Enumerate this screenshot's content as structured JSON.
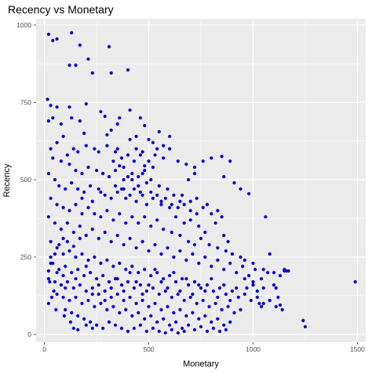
{
  "chart_data": {
    "type": "scatter",
    "title": "Recency vs Monetary",
    "xlabel": "Monetary",
    "ylabel": "Recency",
    "xlim": [
      -40,
      1540
    ],
    "ylim": [
      -25,
      1020
    ],
    "x_ticks": [
      0,
      500,
      1000,
      1500
    ],
    "y_ticks": [
      0,
      250,
      500,
      750,
      1000
    ],
    "x_tick_labels": [
      "0",
      "500",
      "1000",
      "1500"
    ],
    "y_tick_labels": [
      "0",
      "250",
      "500",
      "750",
      "1000"
    ],
    "grid": true,
    "legend": "none",
    "colors": {
      "panel": "#ebebeb",
      "grid": "#ffffff",
      "point": "#0000cd",
      "text": "#000000",
      "tick_text": "#4d4d4d"
    },
    "points": [
      [
        20,
        970
      ],
      [
        40,
        950
      ],
      [
        60,
        955
      ],
      [
        130,
        975
      ],
      [
        170,
        935
      ],
      [
        210,
        890
      ],
      [
        310,
        930
      ],
      [
        400,
        855
      ],
      [
        120,
        870
      ],
      [
        230,
        845
      ],
      [
        150,
        870
      ],
      [
        320,
        845
      ],
      [
        15,
        760
      ],
      [
        30,
        740
      ],
      [
        60,
        735
      ],
      [
        120,
        735
      ],
      [
        200,
        745
      ],
      [
        20,
        690
      ],
      [
        40,
        700
      ],
      [
        80,
        680
      ],
      [
        130,
        700
      ],
      [
        170,
        690
      ],
      [
        190,
        650
      ],
      [
        270,
        720
      ],
      [
        290,
        705
      ],
      [
        360,
        700
      ],
      [
        410,
        725
      ],
      [
        460,
        700
      ],
      [
        350,
        680
      ],
      [
        320,
        660
      ],
      [
        300,
        645
      ],
      [
        480,
        675
      ],
      [
        550,
        655
      ],
      [
        600,
        640
      ],
      [
        520,
        620
      ],
      [
        440,
        640
      ],
      [
        410,
        630
      ],
      [
        30,
        600
      ],
      [
        60,
        620
      ],
      [
        90,
        640
      ],
      [
        110,
        580
      ],
      [
        140,
        600
      ],
      [
        160,
        590
      ],
      [
        200,
        610
      ],
      [
        240,
        600
      ],
      [
        260,
        590
      ],
      [
        300,
        610
      ],
      [
        340,
        590
      ],
      [
        370,
        570
      ],
      [
        400,
        580
      ],
      [
        440,
        600
      ],
      [
        470,
        590
      ],
      [
        500,
        560
      ],
      [
        530,
        580
      ],
      [
        570,
        570
      ],
      [
        600,
        600
      ],
      [
        640,
        560
      ],
      [
        680,
        550
      ],
      [
        720,
        540
      ],
      [
        760,
        560
      ],
      [
        800,
        570
      ],
      [
        850,
        575
      ],
      [
        890,
        560
      ],
      [
        860,
        510
      ],
      [
        910,
        490
      ],
      [
        940,
        470
      ],
      [
        980,
        455
      ],
      [
        720,
        520
      ],
      [
        690,
        500
      ],
      [
        40,
        570
      ],
      [
        80,
        560
      ],
      [
        120,
        550
      ],
      [
        150,
        530
      ],
      [
        180,
        520
      ],
      [
        210,
        540
      ],
      [
        250,
        530
      ],
      [
        280,
        520
      ],
      [
        310,
        510
      ],
      [
        340,
        530
      ],
      [
        380,
        540
      ],
      [
        420,
        520
      ],
      [
        450,
        510
      ],
      [
        480,
        530
      ],
      [
        510,
        500
      ],
      [
        550,
        480
      ],
      [
        590,
        470
      ],
      [
        620,
        450
      ],
      [
        650,
        430
      ],
      [
        660,
        450
      ],
      [
        700,
        430
      ],
      [
        730,
        440
      ],
      [
        760,
        410
      ],
      [
        780,
        420
      ],
      [
        800,
        390
      ],
      [
        830,
        400
      ],
      [
        850,
        380
      ],
      [
        20,
        520
      ],
      [
        50,
        500
      ],
      [
        70,
        480
      ],
      [
        100,
        470
      ],
      [
        130,
        490
      ],
      [
        160,
        470
      ],
      [
        190,
        460
      ],
      [
        220,
        480
      ],
      [
        260,
        470
      ],
      [
        290,
        450
      ],
      [
        320,
        440
      ],
      [
        350,
        460
      ],
      [
        380,
        470
      ],
      [
        410,
        450
      ],
      [
        440,
        430
      ],
      [
        470,
        450
      ],
      [
        490,
        420
      ],
      [
        520,
        440
      ],
      [
        560,
        420
      ],
      [
        600,
        410
      ],
      [
        630,
        380
      ],
      [
        670,
        360
      ],
      [
        700,
        370
      ],
      [
        740,
        350
      ],
      [
        770,
        330
      ],
      [
        820,
        360
      ],
      [
        860,
        320
      ],
      [
        880,
        300
      ],
      [
        30,
        440
      ],
      [
        60,
        420
      ],
      [
        90,
        410
      ],
      [
        120,
        400
      ],
      [
        150,
        420
      ],
      [
        180,
        390
      ],
      [
        210,
        410
      ],
      [
        240,
        390
      ],
      [
        270,
        380
      ],
      [
        300,
        400
      ],
      [
        330,
        370
      ],
      [
        360,
        390
      ],
      [
        390,
        360
      ],
      [
        420,
        380
      ],
      [
        450,
        360
      ],
      [
        480,
        380
      ],
      [
        510,
        350
      ],
      [
        540,
        370
      ],
      [
        570,
        340
      ],
      [
        610,
        330
      ],
      [
        650,
        320
      ],
      [
        690,
        300
      ],
      [
        720,
        290
      ],
      [
        750,
        310
      ],
      [
        790,
        290
      ],
      [
        830,
        280
      ],
      [
        870,
        270
      ],
      [
        900,
        260
      ],
      [
        940,
        250
      ],
      [
        960,
        240
      ],
      [
        1000,
        230
      ],
      [
        1050,
        210
      ],
      [
        1150,
        205
      ],
      [
        1170,
        205
      ],
      [
        1060,
        380
      ],
      [
        1080,
        260
      ],
      [
        1100,
        200
      ],
      [
        1130,
        190
      ],
      [
        20,
        380
      ],
      [
        50,
        360
      ],
      [
        80,
        340
      ],
      [
        110,
        360
      ],
      [
        140,
        330
      ],
      [
        170,
        350
      ],
      [
        200,
        320
      ],
      [
        230,
        340
      ],
      [
        260,
        310
      ],
      [
        290,
        330
      ],
      [
        320,
        300
      ],
      [
        350,
        320
      ],
      [
        380,
        290
      ],
      [
        410,
        310
      ],
      [
        440,
        280
      ],
      [
        470,
        300
      ],
      [
        500,
        270
      ],
      [
        530,
        290
      ],
      [
        560,
        260
      ],
      [
        590,
        280
      ],
      [
        620,
        250
      ],
      [
        650,
        270
      ],
      [
        680,
        240
      ],
      [
        710,
        260
      ],
      [
        740,
        230
      ],
      [
        770,
        250
      ],
      [
        800,
        220
      ],
      [
        830,
        240
      ],
      [
        860,
        210
      ],
      [
        890,
        230
      ],
      [
        920,
        200
      ],
      [
        950,
        220
      ],
      [
        980,
        190
      ],
      [
        1010,
        210
      ],
      [
        1040,
        180
      ],
      [
        1070,
        200
      ],
      [
        30,
        300
      ],
      [
        60,
        280
      ],
      [
        90,
        260
      ],
      [
        120,
        270
      ],
      [
        150,
        250
      ],
      [
        180,
        260
      ],
      [
        210,
        240
      ],
      [
        240,
        250
      ],
      [
        270,
        230
      ],
      [
        300,
        240
      ],
      [
        330,
        220
      ],
      [
        360,
        230
      ],
      [
        390,
        210
      ],
      [
        420,
        220
      ],
      [
        450,
        200
      ],
      [
        480,
        210
      ],
      [
        510,
        190
      ],
      [
        540,
        200
      ],
      [
        570,
        180
      ],
      [
        600,
        190
      ],
      [
        630,
        170
      ],
      [
        660,
        180
      ],
      [
        690,
        160
      ],
      [
        720,
        170
      ],
      [
        750,
        150
      ],
      [
        780,
        160
      ],
      [
        810,
        140
      ],
      [
        840,
        150
      ],
      [
        870,
        130
      ],
      [
        900,
        140
      ],
      [
        930,
        120
      ],
      [
        960,
        130
      ],
      [
        990,
        110
      ],
      [
        1020,
        120
      ],
      [
        1050,
        100
      ],
      [
        1080,
        110
      ],
      [
        1110,
        90
      ],
      [
        1140,
        80
      ],
      [
        1050,
        150
      ],
      [
        1000,
        170
      ],
      [
        40,
        230
      ],
      [
        70,
        210
      ],
      [
        100,
        220
      ],
      [
        130,
        200
      ],
      [
        160,
        210
      ],
      [
        190,
        190
      ],
      [
        220,
        200
      ],
      [
        250,
        180
      ],
      [
        280,
        190
      ],
      [
        310,
        170
      ],
      [
        340,
        180
      ],
      [
        370,
        160
      ],
      [
        400,
        170
      ],
      [
        430,
        150
      ],
      [
        460,
        160
      ],
      [
        490,
        140
      ],
      [
        520,
        150
      ],
      [
        550,
        130
      ],
      [
        580,
        140
      ],
      [
        610,
        120
      ],
      [
        640,
        130
      ],
      [
        670,
        110
      ],
      [
        700,
        120
      ],
      [
        730,
        100
      ],
      [
        760,
        110
      ],
      [
        790,
        90
      ],
      [
        820,
        100
      ],
      [
        850,
        80
      ],
      [
        880,
        90
      ],
      [
        910,
        70
      ],
      [
        940,
        80
      ],
      [
        20,
        180
      ],
      [
        50,
        170
      ],
      [
        80,
        160
      ],
      [
        110,
        170
      ],
      [
        140,
        150
      ],
      [
        170,
        160
      ],
      [
        200,
        140
      ],
      [
        230,
        150
      ],
      [
        260,
        130
      ],
      [
        290,
        140
      ],
      [
        320,
        120
      ],
      [
        350,
        130
      ],
      [
        380,
        110
      ],
      [
        410,
        120
      ],
      [
        440,
        100
      ],
      [
        470,
        110
      ],
      [
        500,
        90
      ],
      [
        530,
        100
      ],
      [
        560,
        80
      ],
      [
        590,
        90
      ],
      [
        620,
        70
      ],
      [
        650,
        80
      ],
      [
        680,
        60
      ],
      [
        710,
        70
      ],
      [
        740,
        50
      ],
      [
        770,
        60
      ],
      [
        800,
        40
      ],
      [
        830,
        50
      ],
      [
        860,
        30
      ],
      [
        890,
        40
      ],
      [
        60,
        130
      ],
      [
        90,
        120
      ],
      [
        120,
        110
      ],
      [
        150,
        120
      ],
      [
        180,
        100
      ],
      [
        210,
        110
      ],
      [
        240,
        90
      ],
      [
        270,
        100
      ],
      [
        300,
        80
      ],
      [
        330,
        90
      ],
      [
        360,
        70
      ],
      [
        390,
        80
      ],
      [
        420,
        60
      ],
      [
        450,
        70
      ],
      [
        480,
        50
      ],
      [
        510,
        60
      ],
      [
        540,
        40
      ],
      [
        570,
        50
      ],
      [
        600,
        30
      ],
      [
        630,
        40
      ],
      [
        660,
        20
      ],
      [
        690,
        30
      ],
      [
        720,
        15
      ],
      [
        750,
        25
      ],
      [
        780,
        10
      ],
      [
        810,
        20
      ],
      [
        840,
        10
      ],
      [
        870,
        15
      ],
      [
        100,
        80
      ],
      [
        130,
        70
      ],
      [
        160,
        60
      ],
      [
        190,
        50
      ],
      [
        220,
        40
      ],
      [
        250,
        30
      ],
      [
        280,
        20
      ],
      [
        310,
        40
      ],
      [
        340,
        30
      ],
      [
        370,
        20
      ],
      [
        400,
        10
      ],
      [
        430,
        20
      ],
      [
        460,
        30
      ],
      [
        490,
        10
      ],
      [
        520,
        20
      ],
      [
        550,
        10
      ],
      [
        580,
        5
      ],
      [
        610,
        15
      ],
      [
        640,
        5
      ],
      [
        670,
        10
      ],
      [
        30,
        230
      ],
      [
        60,
        200
      ],
      [
        90,
        190
      ],
      [
        100,
        150
      ],
      [
        150,
        180
      ],
      [
        200,
        220
      ],
      [
        230,
        130
      ],
      [
        260,
        160
      ],
      [
        290,
        110
      ],
      [
        320,
        150
      ],
      [
        350,
        180
      ],
      [
        380,
        140
      ],
      [
        410,
        200
      ],
      [
        440,
        170
      ],
      [
        470,
        130
      ],
      [
        500,
        160
      ],
      [
        530,
        210
      ],
      [
        560,
        170
      ],
      [
        590,
        150
      ],
      [
        620,
        200
      ],
      [
        650,
        140
      ],
      [
        680,
        180
      ],
      [
        710,
        130
      ],
      [
        740,
        160
      ],
      [
        770,
        140
      ],
      [
        800,
        180
      ],
      [
        830,
        120
      ],
      [
        860,
        160
      ],
      [
        890,
        110
      ],
      [
        920,
        150
      ],
      [
        1240,
        45
      ],
      [
        1250,
        25
      ],
      [
        1490,
        170
      ],
      [
        1150,
        210
      ],
      [
        1160,
        205
      ],
      [
        1100,
        160
      ],
      [
        1110,
        150
      ],
      [
        1120,
        120
      ],
      [
        1130,
        95
      ],
      [
        1000,
        160
      ],
      [
        1020,
        140
      ],
      [
        1030,
        100
      ],
      [
        1040,
        90
      ],
      [
        960,
        180
      ],
      [
        970,
        150
      ],
      [
        350,
        600
      ],
      [
        370,
        470
      ],
      [
        390,
        440
      ],
      [
        330,
        560
      ],
      [
        360,
        545
      ],
      [
        400,
        510
      ],
      [
        380,
        500
      ],
      [
        340,
        480
      ],
      [
        270,
        460
      ],
      [
        230,
        430
      ],
      [
        180,
        440
      ],
      [
        170,
        310
      ],
      [
        140,
        285
      ],
      [
        110,
        300
      ],
      [
        90,
        310
      ],
      [
        70,
        290
      ],
      [
        50,
        260
      ],
      [
        30,
        250
      ],
      [
        20,
        205
      ],
      [
        25,
        170
      ],
      [
        45,
        140
      ],
      [
        35,
        120
      ],
      [
        20,
        100
      ],
      [
        55,
        80
      ],
      [
        95,
        60
      ],
      [
        125,
        40
      ],
      [
        140,
        20
      ],
      [
        160,
        15
      ],
      [
        200,
        30
      ],
      [
        230,
        20
      ],
      [
        420,
        500
      ],
      [
        450,
        480
      ],
      [
        470,
        520
      ],
      [
        430,
        470
      ],
      [
        460,
        460
      ],
      [
        490,
        490
      ],
      [
        510,
        460
      ],
      [
        540,
        450
      ],
      [
        560,
        430
      ],
      [
        580,
        440
      ],
      [
        610,
        420
      ],
      [
        640,
        410
      ],
      [
        670,
        420
      ],
      [
        700,
        400
      ],
      [
        730,
        390
      ],
      [
        540,
        600
      ],
      [
        570,
        610
      ],
      [
        500,
        630
      ],
      [
        460,
        580
      ],
      [
        430,
        560
      ],
      [
        480,
        545
      ],
      [
        520,
        540
      ]
    ]
  }
}
